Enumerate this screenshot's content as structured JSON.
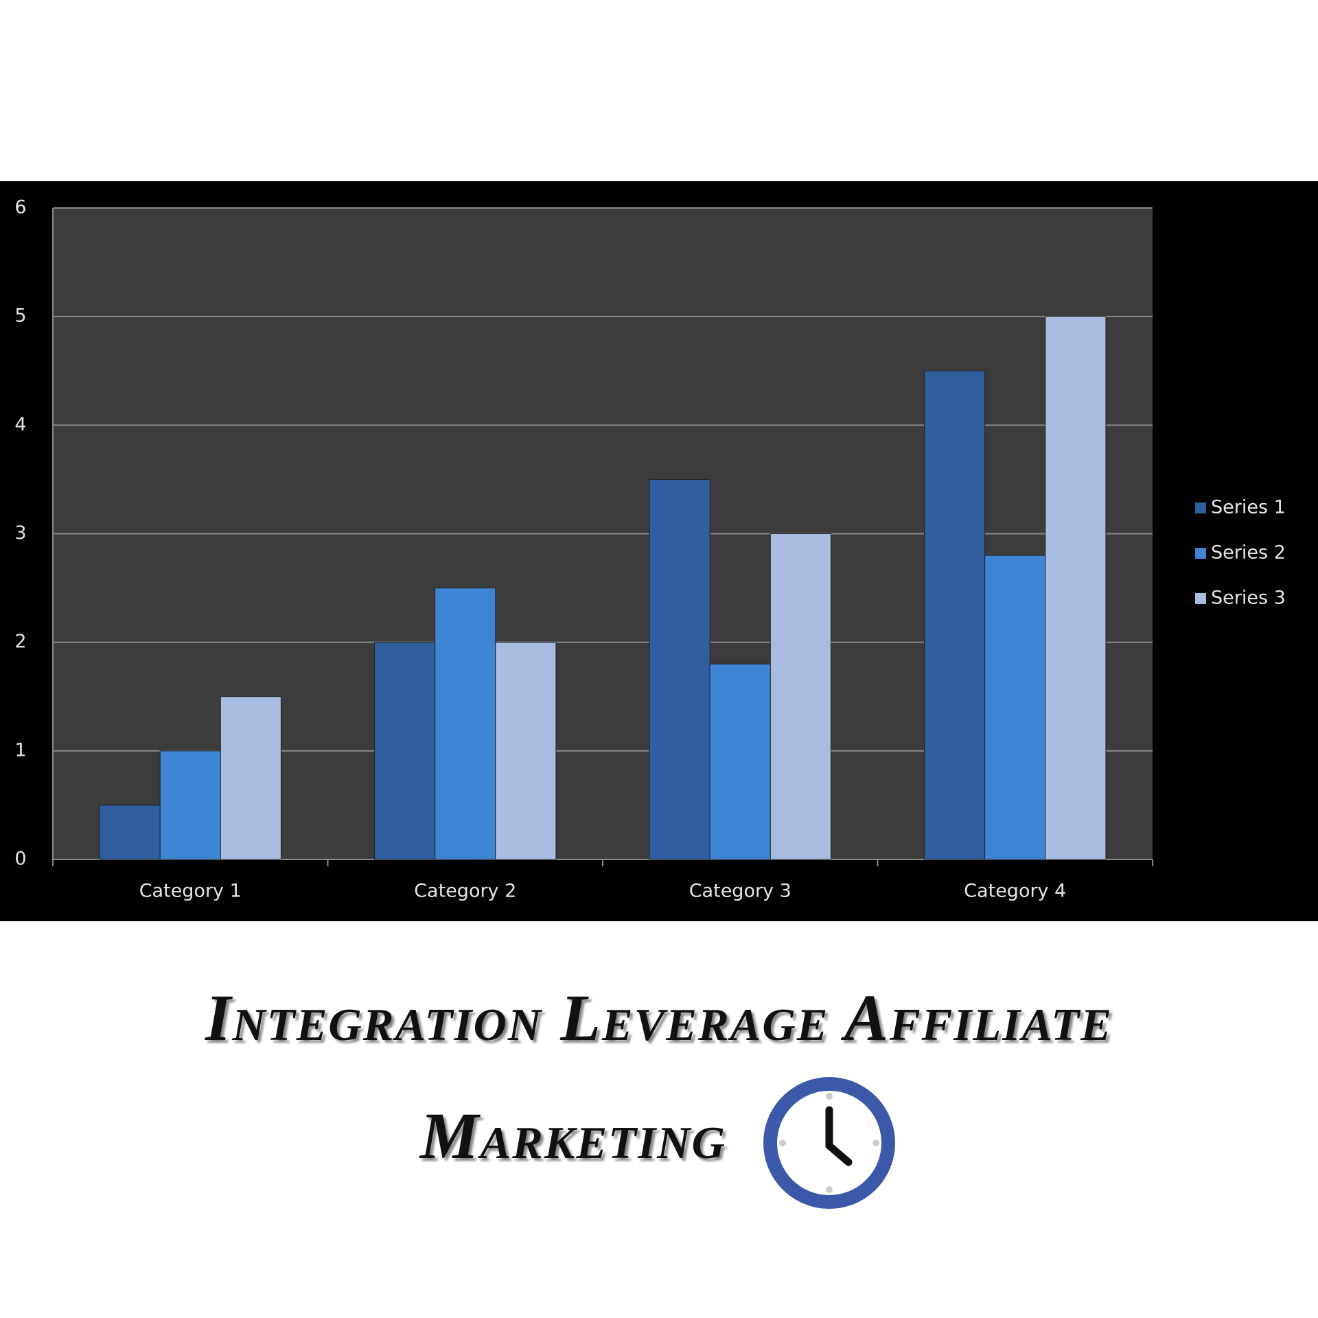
{
  "chart_data": {
    "type": "bar",
    "title": "Integration Leverage Affiliate Marketing",
    "categories": [
      "Category 1",
      "Category 2",
      "Category 3",
      "Category 4"
    ],
    "series": [
      {
        "name": "Series 1",
        "color": "#2f5f9e",
        "values": [
          0.5,
          2,
          3.5,
          4.5
        ]
      },
      {
        "name": "Series 2",
        "color": "#3f85d6",
        "values": [
          1,
          2.5,
          1.8,
          2.8
        ]
      },
      {
        "name": "Series 3",
        "color": "#a9bde3",
        "values": [
          1.5,
          2,
          3,
          5
        ]
      }
    ],
    "ylim": [
      0,
      6
    ],
    "yticks": [
      0,
      1,
      2,
      3,
      4,
      5,
      6
    ],
    "grid": true,
    "legend": "right"
  }
}
